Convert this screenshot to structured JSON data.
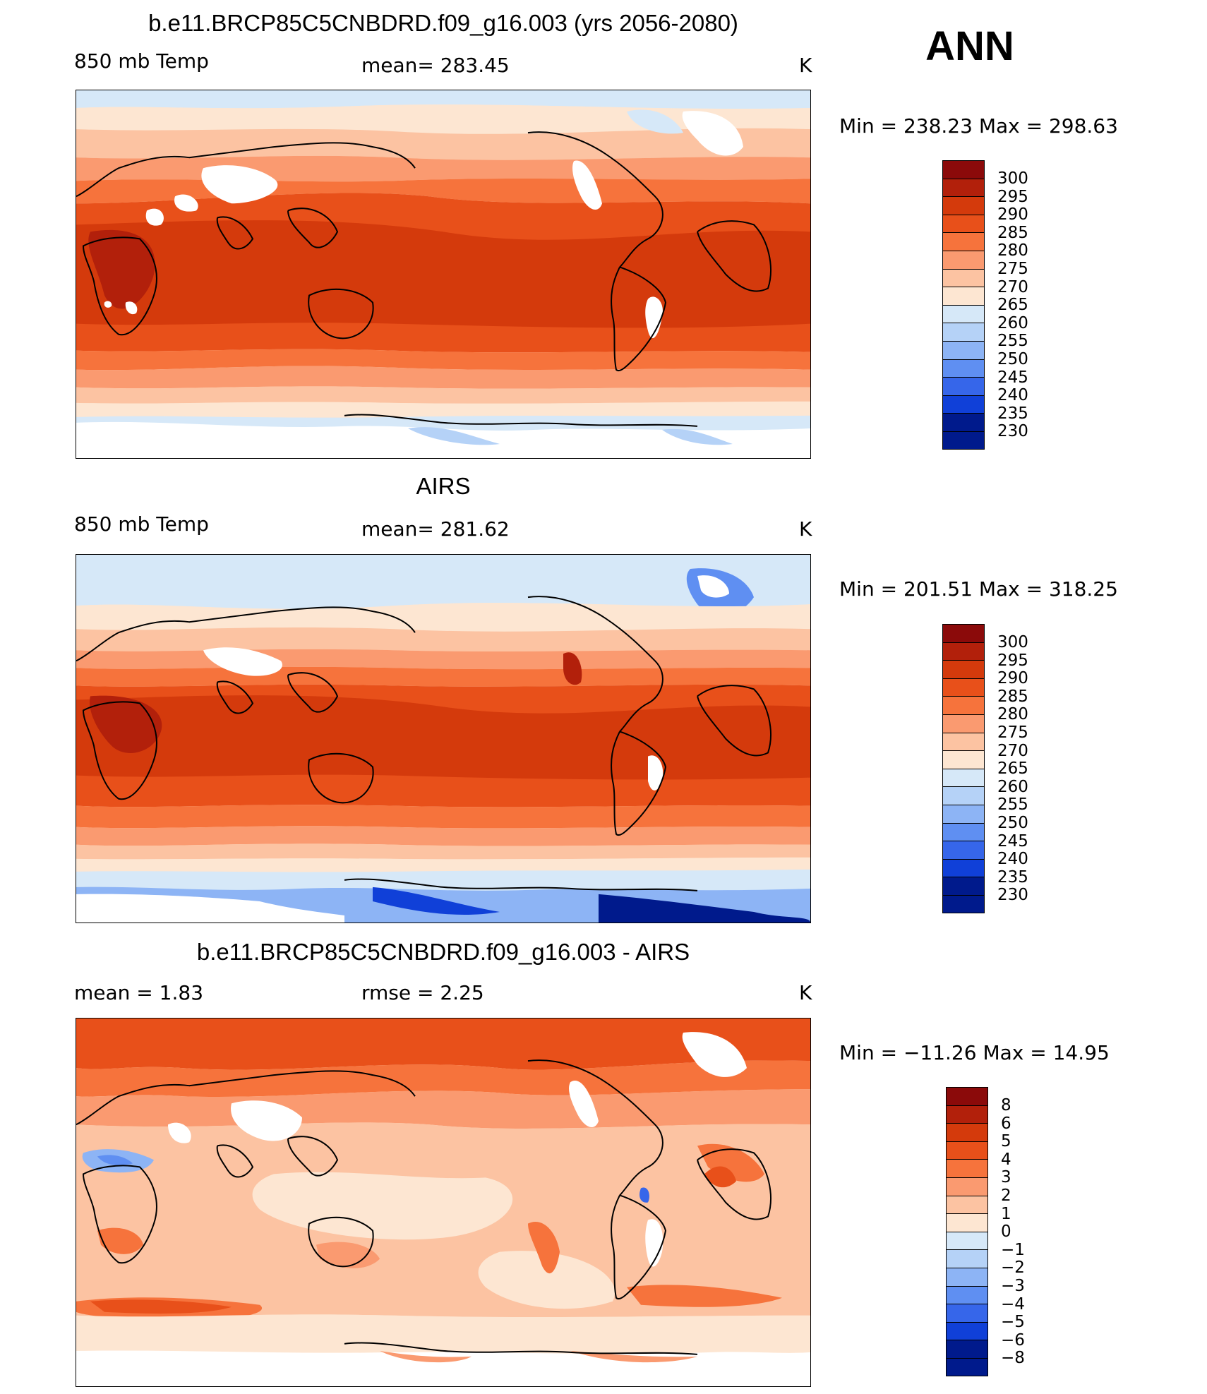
{
  "season": "ANN",
  "panels": [
    {
      "id": "model",
      "title": "b.e11.BRCP85C5CNBDRD.f09_g16.003 (yrs 2056-2080)",
      "left_label": "850 mb Temp",
      "center_label": "mean=  283.45",
      "units": "K",
      "minmax": "Min  =  238.23  Max  =  298.63",
      "colorbar_levels": [
        "300",
        "295",
        "290",
        "285",
        "280",
        "275",
        "270",
        "265",
        "260",
        "255",
        "250",
        "245",
        "240",
        "235",
        "230"
      ],
      "colorbar_colors": [
        "#8b0a0a",
        "#b2200b",
        "#d43a0c",
        "#e8501a",
        "#f6733c",
        "#fa9a70",
        "#fcc3a2",
        "#fde6d2",
        "#d6e8f8",
        "#b5d2f7",
        "#8db4f5",
        "#5f8ff2",
        "#3666ea",
        "#1040d8",
        "#001a8c"
      ]
    },
    {
      "id": "obs",
      "title": "AIRS",
      "left_label": "850 mb Temp",
      "center_label": "mean=  281.62",
      "units": "K",
      "minmax": "Min  =  201.51  Max  =  318.25",
      "colorbar_levels": [
        "300",
        "295",
        "290",
        "285",
        "280",
        "275",
        "270",
        "265",
        "260",
        "255",
        "250",
        "245",
        "240",
        "235",
        "230"
      ],
      "colorbar_colors": [
        "#8b0a0a",
        "#b2200b",
        "#d43a0c",
        "#e8501a",
        "#f6733c",
        "#fa9a70",
        "#fcc3a2",
        "#fde6d2",
        "#d6e8f8",
        "#b5d2f7",
        "#8db4f5",
        "#5f8ff2",
        "#3666ea",
        "#1040d8",
        "#001a8c"
      ]
    },
    {
      "id": "diff",
      "title": "b.e11.BRCP85C5CNBDRD.f09_g16.003 - AIRS",
      "left_label": "mean =     1.83",
      "center_label": "rmse  =     2.25",
      "units": "K",
      "minmax": "Min  =  −11.26  Max  =    14.95",
      "colorbar_levels": [
        "8",
        "6",
        "5",
        "4",
        "3",
        "2",
        "1",
        "0",
        "−1",
        "−2",
        "−3",
        "−4",
        "−5",
        "−6",
        "−8"
      ],
      "colorbar_colors": [
        "#8b0a0a",
        "#b2200b",
        "#d43a0c",
        "#e8501a",
        "#f6733c",
        "#fa9a70",
        "#fcc3a2",
        "#fde6d2",
        "#d6e8f8",
        "#b5d2f7",
        "#8db4f5",
        "#5f8ff2",
        "#3666ea",
        "#1040d8",
        "#001a8c"
      ]
    }
  ],
  "colors": {
    "land_missing": "#ffffff",
    "coastline": "#000000"
  }
}
